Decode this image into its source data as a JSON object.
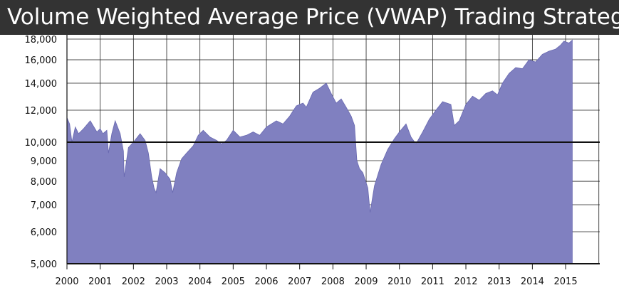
{
  "chart_data": {
    "type": "area",
    "title": "Volume Weighted Average Price (VWAP) Trading Strategy",
    "xlabel": "",
    "ylabel": "",
    "y_scale": "log",
    "xlim": [
      2000,
      2016
    ],
    "ylim": [
      5000,
      19000
    ],
    "grid": true,
    "legend": "none",
    "x_ticks": [
      "2000",
      "2001",
      "2002",
      "2003",
      "2004",
      "2005",
      "2006",
      "2007",
      "2008",
      "2009",
      "2010",
      "2011",
      "2012",
      "2013",
      "2014",
      "2015"
    ],
    "y_ticks": [
      "5,000",
      "6,000",
      "7,000",
      "8,000",
      "9,000",
      "10,000",
      "12,000",
      "14,000",
      "16,000",
      "18,000"
    ],
    "y_tick_values": [
      5000,
      6000,
      7000,
      8000,
      9000,
      10000,
      12000,
      14000,
      16000,
      18000
    ],
    "reference_line": 10000,
    "colors": {
      "area": "#8080c0",
      "area_edge": "#6868b0",
      "grid": "#222222",
      "title_bar": "#333333"
    },
    "series": [
      {
        "points": [
          [
            2000.0,
            11500
          ],
          [
            2000.08,
            11100
          ],
          [
            2000.15,
            10000
          ],
          [
            2000.25,
            10900
          ],
          [
            2000.35,
            10500
          ],
          [
            2000.5,
            10800
          ],
          [
            2000.7,
            11300
          ],
          [
            2000.9,
            10600
          ],
          [
            2001.0,
            10800
          ],
          [
            2001.08,
            10500
          ],
          [
            2001.2,
            10700
          ],
          [
            2001.25,
            9400
          ],
          [
            2001.35,
            10500
          ],
          [
            2001.45,
            11300
          ],
          [
            2001.6,
            10500
          ],
          [
            2001.7,
            9500
          ],
          [
            2001.72,
            8200
          ],
          [
            2001.85,
            9700
          ],
          [
            2002.0,
            10000
          ],
          [
            2002.2,
            10500
          ],
          [
            2002.35,
            10100
          ],
          [
            2002.45,
            9400
          ],
          [
            2002.55,
            8200
          ],
          [
            2002.62,
            7700
          ],
          [
            2002.68,
            7500
          ],
          [
            2002.8,
            8600
          ],
          [
            2002.95,
            8400
          ],
          [
            2003.1,
            8100
          ],
          [
            2003.18,
            7500
          ],
          [
            2003.3,
            8400
          ],
          [
            2003.45,
            9100
          ],
          [
            2003.6,
            9400
          ],
          [
            2003.8,
            9800
          ],
          [
            2003.95,
            10400
          ],
          [
            2004.1,
            10700
          ],
          [
            2004.3,
            10300
          ],
          [
            2004.5,
            10100
          ],
          [
            2004.65,
            9900
          ],
          [
            2004.8,
            10100
          ],
          [
            2005.0,
            10700
          ],
          [
            2005.2,
            10300
          ],
          [
            2005.4,
            10400
          ],
          [
            2005.6,
            10600
          ],
          [
            2005.8,
            10400
          ],
          [
            2006.0,
            10900
          ],
          [
            2006.3,
            11300
          ],
          [
            2006.5,
            11100
          ],
          [
            2006.7,
            11600
          ],
          [
            2006.9,
            12300
          ],
          [
            2007.1,
            12500
          ],
          [
            2007.2,
            12200
          ],
          [
            2007.4,
            13300
          ],
          [
            2007.6,
            13600
          ],
          [
            2007.8,
            14000
          ],
          [
            2007.95,
            13200
          ],
          [
            2008.1,
            12500
          ],
          [
            2008.25,
            12800
          ],
          [
            2008.4,
            12200
          ],
          [
            2008.55,
            11600
          ],
          [
            2008.65,
            11000
          ],
          [
            2008.72,
            9000
          ],
          [
            2008.8,
            8600
          ],
          [
            2008.9,
            8400
          ],
          [
            2009.05,
            7700
          ],
          [
            2009.12,
            6700
          ],
          [
            2009.25,
            7800
          ],
          [
            2009.45,
            8800
          ],
          [
            2009.65,
            9600
          ],
          [
            2009.85,
            10200
          ],
          [
            2010.0,
            10600
          ],
          [
            2010.2,
            11100
          ],
          [
            2010.35,
            10300
          ],
          [
            2010.5,
            9900
          ],
          [
            2010.7,
            10600
          ],
          [
            2010.9,
            11400
          ],
          [
            2011.1,
            12000
          ],
          [
            2011.3,
            12600
          ],
          [
            2011.55,
            12400
          ],
          [
            2011.65,
            11000
          ],
          [
            2011.8,
            11300
          ],
          [
            2012.0,
            12400
          ],
          [
            2012.2,
            13000
          ],
          [
            2012.4,
            12700
          ],
          [
            2012.6,
            13200
          ],
          [
            2012.8,
            13400
          ],
          [
            2012.95,
            13100
          ],
          [
            2013.1,
            14000
          ],
          [
            2013.3,
            14800
          ],
          [
            2013.5,
            15300
          ],
          [
            2013.7,
            15200
          ],
          [
            2013.9,
            16000
          ],
          [
            2014.1,
            15800
          ],
          [
            2014.3,
            16500
          ],
          [
            2014.5,
            16800
          ],
          [
            2014.7,
            17000
          ],
          [
            2014.85,
            17400
          ],
          [
            2014.95,
            17800
          ],
          [
            2015.1,
            17600
          ],
          [
            2015.2,
            17900
          ]
        ]
      }
    ]
  }
}
